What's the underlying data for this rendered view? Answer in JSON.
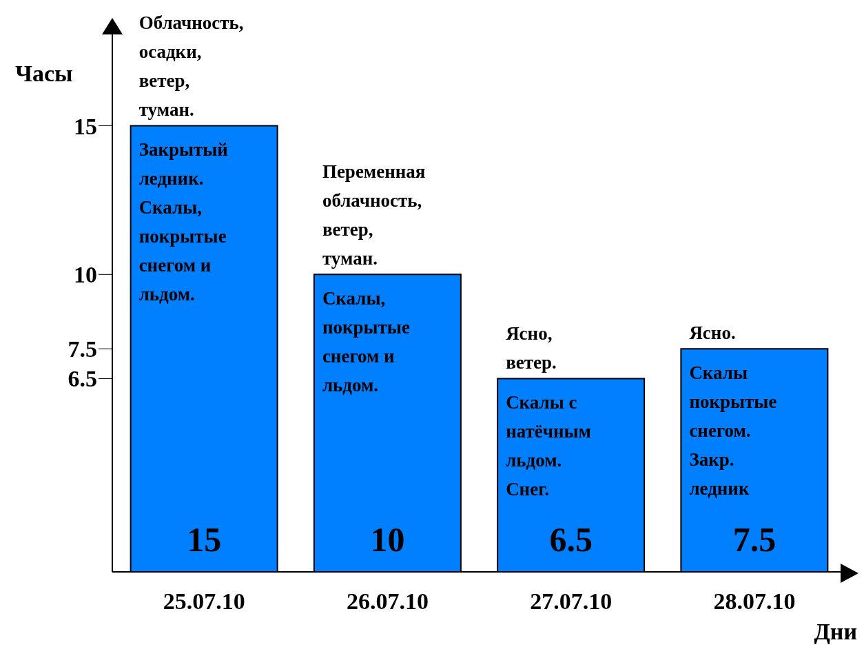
{
  "chart_data": {
    "type": "bar",
    "xlabel": "Дни",
    "ylabel": "Часы",
    "categories": [
      "25.07.10",
      "26.07.10",
      "27.07.10",
      "28.07.10"
    ],
    "values": [
      15,
      10,
      6.5,
      7.5
    ],
    "color": "#0080ff",
    "ylim": [
      0,
      18.3
    ],
    "yticks": [
      6.5,
      7.5,
      10,
      15
    ],
    "data_labels": true,
    "annotations": [
      {
        "text": "Облачность, осадки, ветер, туман.",
        "x": "25.07.10",
        "y": 15
      },
      {
        "text": "Закрытый ледник. Скалы, покрытые снегом и льдом.",
        "x": "25.07.10",
        "y": 15
      },
      {
        "text": "Переменная облачность, ветер, туман.",
        "x": "26.07.10",
        "y": 10
      },
      {
        "text": "Скалы, покрытые снегом и льдом.",
        "x": "26.07.10",
        "y": 10
      },
      {
        "text": "Ясно, ветер.",
        "x": "27.07.10",
        "y": 6.5
      },
      {
        "text": "Скалы с натёчным льдом. Снег.",
        "x": "27.07.10",
        "y": 6.5
      },
      {
        "text": "Ясно.",
        "x": "28.07.10",
        "y": 7.5
      },
      {
        "text": "Скалы покрытые снегом. Закр. ледник",
        "x": "28.07.10",
        "y": 7.5
      }
    ]
  }
}
